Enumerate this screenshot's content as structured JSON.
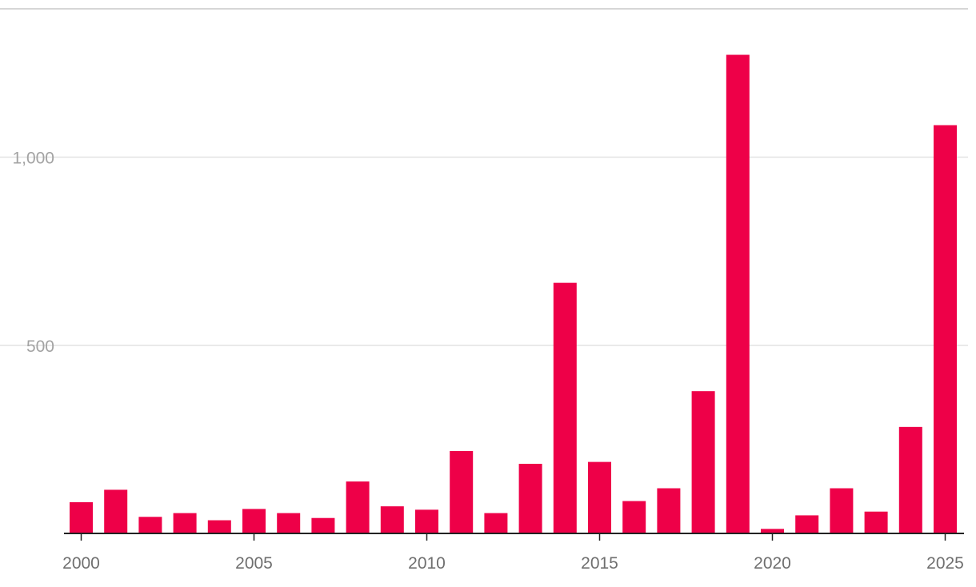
{
  "chart_data": {
    "type": "bar",
    "title": "",
    "xlabel": "",
    "ylabel": "",
    "categories": [
      "2000",
      "2001",
      "2002",
      "2003",
      "2004",
      "2005",
      "2006",
      "2007",
      "2008",
      "2009",
      "2010",
      "2011",
      "2012",
      "2013",
      "2014",
      "2015",
      "2016",
      "2017",
      "2018",
      "2019",
      "2020",
      "2021",
      "2022",
      "2023",
      "2024",
      "2025"
    ],
    "values": [
      83,
      116,
      44,
      54,
      35,
      65,
      54,
      41,
      138,
      72,
      63,
      219,
      54,
      185,
      666,
      190,
      86,
      120,
      378,
      1272,
      12,
      48,
      120,
      58,
      283,
      1085
    ],
    "ylim": [
      0,
      1300
    ],
    "y_ticks": [
      {
        "value": 500,
        "label": "500"
      },
      {
        "value": 1000,
        "label": "1,000"
      }
    ],
    "x_ticks": [
      {
        "value": "2000",
        "label": "2000"
      },
      {
        "value": "2005",
        "label": "2005"
      },
      {
        "value": "2010",
        "label": "2010"
      },
      {
        "value": "2015",
        "label": "2015"
      },
      {
        "value": "2020",
        "label": "2020"
      },
      {
        "value": "2025",
        "label": "2025"
      }
    ],
    "grid": true,
    "colors": {
      "bar": "#ee0048",
      "gridline": "#e2e2e2",
      "top_rule": "#d6d6d6",
      "axis": "#222222"
    }
  }
}
